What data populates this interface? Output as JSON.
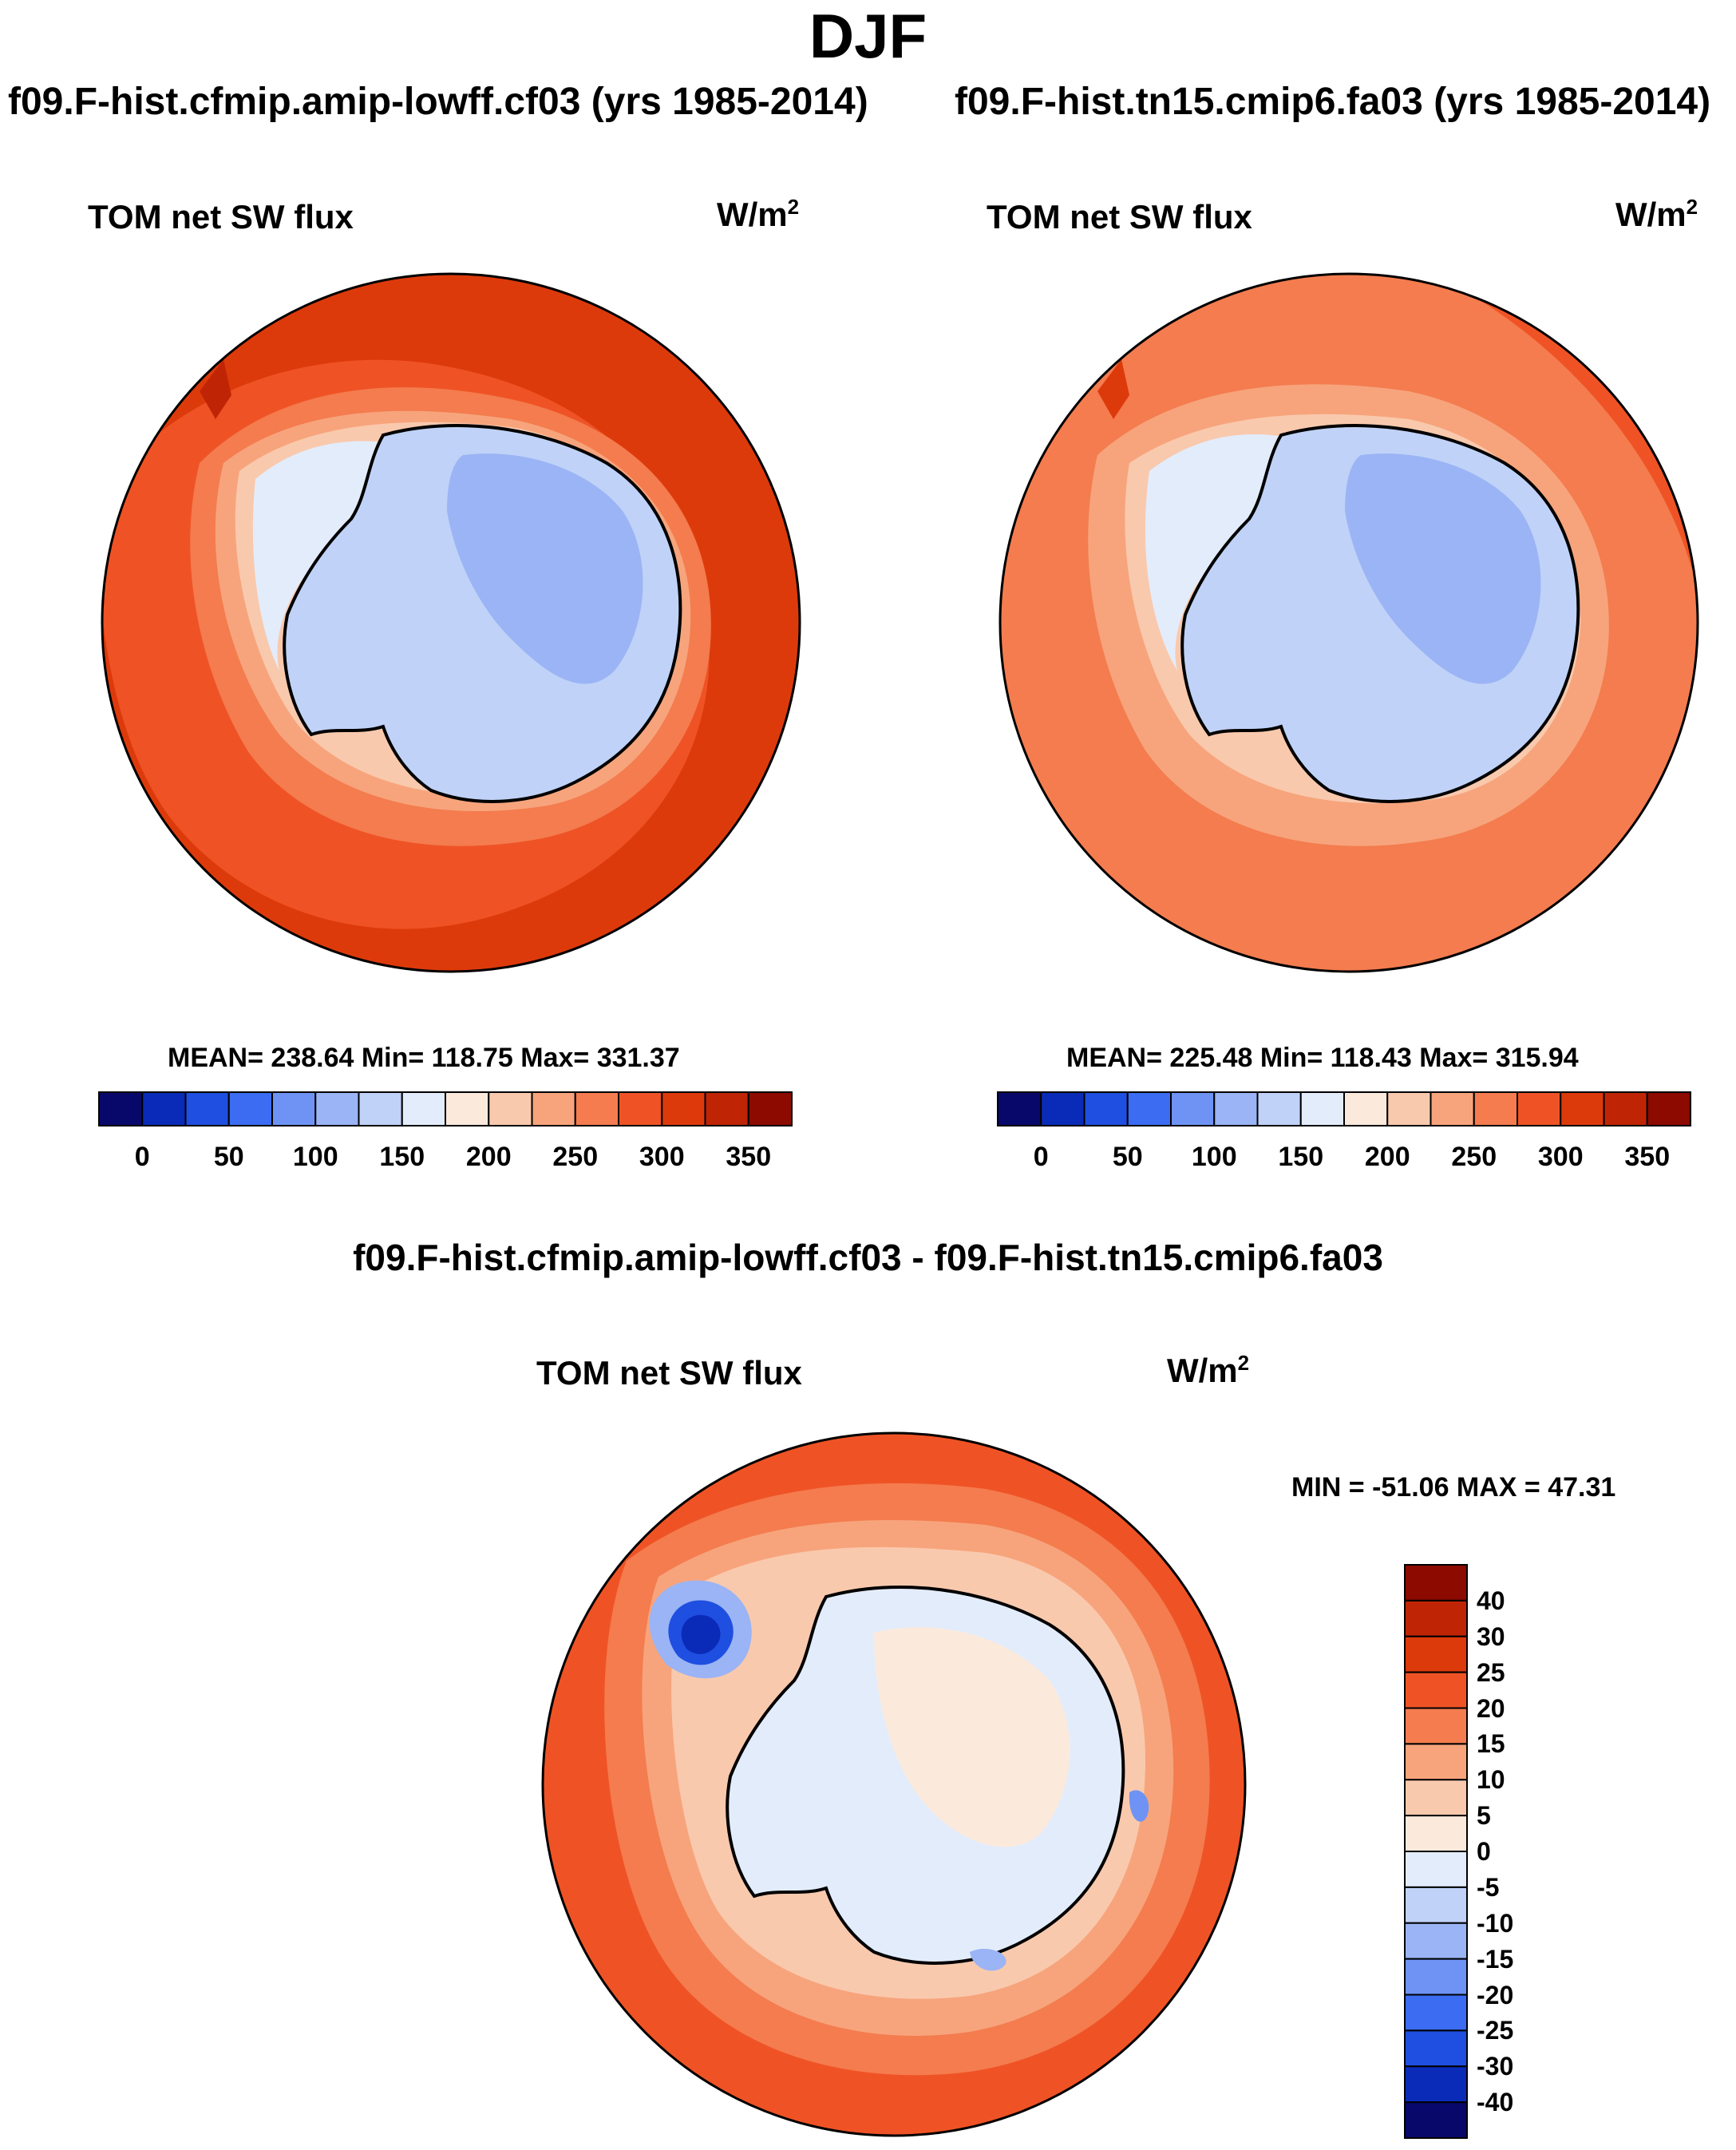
{
  "figure": {
    "title": "DJF",
    "bottom_title": "f09.F-hist.cfmip.amip-lowff.cf03 - f09.F-hist.tn15.cmip6.fa03"
  },
  "panels": [
    {
      "case_title": "f09.F-hist.cfmip.amip-lowff.cf03 (yrs 1985-2014)",
      "variable": "TOM net SW flux",
      "units": "W/m",
      "units_sup": "2",
      "stats": "MEAN= 238.64  Min= 118.75  Max= 331.37"
    },
    {
      "case_title": "f09.F-hist.tn15.cmip6.fa03 (yrs 1985-2014)",
      "variable": "TOM net SW flux",
      "units": "W/m",
      "units_sup": "2",
      "stats": "MEAN= 225.48  Min= 118.43  Max= 315.94"
    },
    {
      "variable": "TOM net SW flux",
      "units": "W/m",
      "units_sup": "2",
      "stats": "MIN = -51.06 MAX =  47.31"
    }
  ],
  "colorbar_abs": {
    "tick_labels": [
      "0",
      "50",
      "100",
      "150",
      "200",
      "250",
      "300",
      "350"
    ],
    "colors": [
      "#08086b",
      "#0a2bb8",
      "#1f4fe0",
      "#3b6cf2",
      "#6e93f5",
      "#9ab4f5",
      "#c0d2f7",
      "#e3ecfb",
      "#fbeadc",
      "#f9c9ad",
      "#f7a47c",
      "#f47c4f",
      "#ef5325",
      "#dd3a0c",
      "#bf2505",
      "#8c0a00"
    ]
  },
  "colorbar_diff": {
    "tick_labels": [
      "40",
      "30",
      "25",
      "20",
      "15",
      "10",
      "5",
      "0",
      "-5",
      "-10",
      "-15",
      "-20",
      "-25",
      "-30",
      "-40"
    ],
    "colors": [
      "#8c0a00",
      "#bf2505",
      "#dd3a0c",
      "#ef5325",
      "#f47c4f",
      "#f7a47c",
      "#f9c9ad",
      "#fbeadc",
      "#e3ecfb",
      "#c0d2f7",
      "#9ab4f5",
      "#6e93f5",
      "#3b6cf2",
      "#1f4fe0",
      "#0a2bb8",
      "#08086b"
    ]
  },
  "colors": {
    "ocean_far_panel1": "#dd3a0c",
    "ocean_mid_panel1": "#ef5325",
    "ocean_panel2": "#f47c4f",
    "ice_shelf_light": "#e3ecfb",
    "continent": "#c0d2f7",
    "continent_dark": "#9ab4f5",
    "diff_continent": "#e3ecfb",
    "diff_ocean": "#f9c9ad",
    "diff_outer": "#ef5325",
    "diff_blue_spot": "#0a2bb8"
  }
}
